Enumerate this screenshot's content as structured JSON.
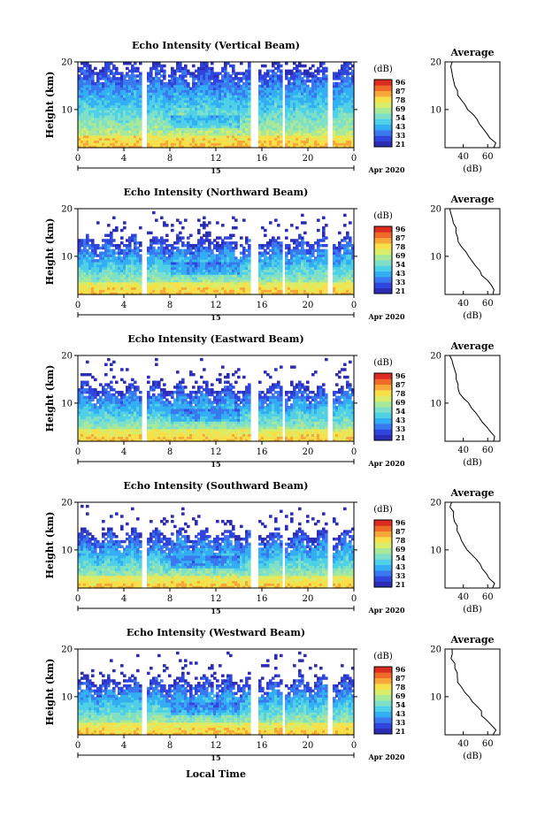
{
  "colors": {
    "cmap": [
      "#2c2cb4",
      "#2f45dc",
      "#3a78f0",
      "#33aef2",
      "#4fd0e6",
      "#7ee0c8",
      "#a8e89a",
      "#d8ee6a",
      "#f8e04a",
      "#f8a838",
      "#f06a2a",
      "#dc2c22"
    ],
    "gap": "#ffffff",
    "axis": "#000000"
  },
  "colorbar": {
    "unit": "(dB)",
    "ticks": [
      "96",
      "87",
      "78",
      "69",
      "54",
      "43",
      "33",
      "21"
    ]
  },
  "shared": {
    "x_ticks": [
      "0",
      "4",
      "8",
      "12",
      "16",
      "20",
      "0"
    ],
    "y_ticks": [
      "20",
      "10"
    ],
    "ylabel": "Height (km)",
    "day_label": "15",
    "month_label": "Apr 2020",
    "xlabel": "Local Time",
    "avg_title": "Average",
    "avg_xlabel": "(dB)",
    "avg_y_ticks": [
      "20",
      "10"
    ]
  },
  "panels": [
    {
      "id": "vertical",
      "title": "Echo Intensity (Vertical Beam)",
      "avg_x_ticks": [
        "40",
        "60"
      ]
    },
    {
      "id": "northward",
      "title": "Echo Intensity (Northward Beam)",
      "avg_x_ticks": [
        "40",
        "60"
      ]
    },
    {
      "id": "eastward",
      "title": "Echo Intensity (Eastward Beam)",
      "avg_x_ticks": [
        "40",
        "60"
      ]
    },
    {
      "id": "southward",
      "title": "Echo Intensity (Southward Beam)",
      "avg_x_ticks": [
        "40",
        "60"
      ]
    },
    {
      "id": "westward",
      "title": "Echo Intensity (Westward Beam)",
      "avg_x_ticks": [
        "40",
        "60"
      ]
    }
  ],
  "chart_data": [
    {
      "type": "heatmap",
      "title": "Echo Intensity (Vertical Beam)",
      "ylabel": "Height (km)",
      "xlabel": "Local Time",
      "x_range_hours": [
        0,
        24
      ],
      "ylim_km": [
        2,
        20
      ],
      "color_range_dB": [
        21,
        96
      ],
      "data_gaps_hours": [
        [
          5.6,
          5.9
        ],
        [
          14.9,
          15.7
        ],
        [
          17.7,
          18.1
        ],
        [
          21.8,
          22.2
        ]
      ]
    },
    {
      "type": "heatmap",
      "title": "Echo Intensity (Northward Beam)",
      "ylabel": "Height (km)",
      "xlabel": "Local Time",
      "x_range_hours": [
        0,
        24
      ],
      "ylim_km": [
        2,
        20
      ],
      "color_range_dB": [
        21,
        96
      ],
      "data_gaps_hours": [
        [
          5.6,
          5.9
        ],
        [
          14.9,
          15.7
        ],
        [
          17.7,
          18.1
        ],
        [
          21.8,
          22.2
        ]
      ]
    },
    {
      "type": "heatmap",
      "title": "Echo Intensity (Eastward Beam)",
      "ylabel": "Height (km)",
      "xlabel": "Local Time",
      "x_range_hours": [
        0,
        24
      ],
      "ylim_km": [
        2,
        20
      ],
      "color_range_dB": [
        21,
        96
      ],
      "data_gaps_hours": [
        [
          5.6,
          5.9
        ],
        [
          14.9,
          15.7
        ],
        [
          17.7,
          18.1
        ],
        [
          21.8,
          22.2
        ]
      ]
    },
    {
      "type": "heatmap",
      "title": "Echo Intensity (Southward Beam)",
      "ylabel": "Height (km)",
      "xlabel": "Local Time",
      "x_range_hours": [
        0,
        24
      ],
      "ylim_km": [
        2,
        20
      ],
      "color_range_dB": [
        21,
        96
      ],
      "data_gaps_hours": [
        [
          5.6,
          5.9
        ],
        [
          14.9,
          15.7
        ],
        [
          17.7,
          18.1
        ],
        [
          21.8,
          22.2
        ]
      ]
    },
    {
      "type": "heatmap",
      "title": "Echo Intensity (Westward Beam)",
      "ylabel": "Height (km)",
      "xlabel": "Local Time",
      "x_range_hours": [
        0,
        24
      ],
      "ylim_km": [
        2,
        20
      ],
      "color_range_dB": [
        21,
        96
      ],
      "data_gaps_hours": [
        [
          5.6,
          5.9
        ],
        [
          14.9,
          15.7
        ],
        [
          17.7,
          18.1
        ],
        [
          21.8,
          22.2
        ]
      ]
    },
    {
      "type": "line",
      "title": "Average",
      "xlabel": "(dB)",
      "ylabel": "Height (km)",
      "xlim": [
        25,
        70
      ],
      "ylim": [
        2,
        20
      ],
      "series": [
        {
          "x": [
            64,
            66,
            62,
            60,
            56,
            54,
            50,
            47,
            44,
            41,
            38,
            36,
            35,
            34,
            33,
            32,
            31,
            30,
            30
          ],
          "y": [
            2,
            3,
            4,
            5,
            6,
            7,
            8,
            9,
            10,
            11,
            12,
            13,
            14,
            15,
            16,
            17,
            18,
            19,
            20
          ]
        }
      ]
    }
  ]
}
